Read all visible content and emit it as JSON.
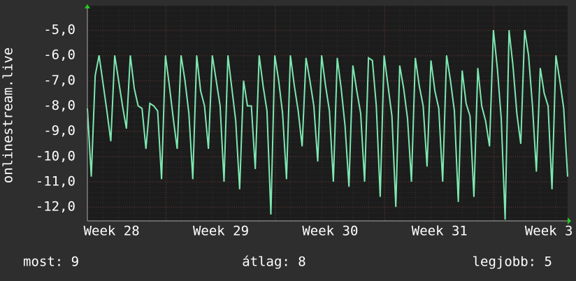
{
  "chart_data": {
    "type": "line",
    "ylabel": "onlinestream.live",
    "x": [
      0,
      0.25,
      0.5,
      0.75,
      1,
      1.25,
      1.5,
      1.75,
      2,
      2.25,
      2.5,
      2.75,
      3,
      3.25,
      3.5,
      3.75,
      4,
      4.25,
      4.5,
      4.75,
      5,
      5.25,
      5.5,
      5.75,
      6,
      6.25,
      6.5,
      6.75,
      7,
      7.25,
      7.5,
      7.75,
      8,
      8.25,
      8.5,
      8.75,
      9,
      9.25,
      9.5,
      9.75,
      10,
      10.25,
      10.5,
      10.75,
      11,
      11.25,
      11.5,
      11.75,
      12,
      12.25,
      12.5,
      12.75,
      13,
      13.25,
      13.5,
      13.75,
      14,
      14.25,
      14.5,
      14.75,
      15,
      15.25,
      15.5,
      15.75,
      16,
      16.25,
      16.5,
      16.75,
      17,
      17.25,
      17.5,
      17.75,
      18,
      18.25,
      18.5,
      18.75,
      19,
      19.25,
      19.5,
      19.75,
      20,
      20.25,
      20.5,
      20.75,
      21,
      21.25,
      21.5,
      21.75,
      22,
      22.25,
      22.5,
      22.75,
      23,
      23.25,
      23.5,
      23.75,
      24,
      24.25,
      24.5,
      24.75,
      25,
      25.25,
      25.5,
      25.75,
      26,
      26.25,
      26.5,
      26.75,
      27,
      27.25,
      27.5,
      27.75,
      28,
      28.25,
      28.5,
      28.75,
      29,
      29.25,
      29.5,
      29.75,
      30,
      30.25,
      30.5,
      30.75
    ],
    "series": [
      {
        "name": "onlinestream.live",
        "color": "#7de8b0",
        "values": [
          -8.1,
          -10.8,
          -6.8,
          -6.0,
          -7.1,
          -8.2,
          -9.4,
          -6.0,
          -7.0,
          -8.0,
          -8.9,
          -6.0,
          -7.3,
          -8.0,
          -8.1,
          -9.7,
          -7.9,
          -8.0,
          -8.2,
          -10.9,
          -6.0,
          -7.2,
          -8.5,
          -9.7,
          -6.0,
          -7.0,
          -8.3,
          -10.9,
          -6.0,
          -7.4,
          -8.0,
          -9.7,
          -6.0,
          -7.0,
          -8.0,
          -11.0,
          -6.0,
          -7.3,
          -8.6,
          -11.3,
          -7.0,
          -8.0,
          -8.0,
          -10.5,
          -6.0,
          -7.2,
          -8.2,
          -12.3,
          -6.0,
          -7.0,
          -8.3,
          -10.9,
          -6.0,
          -7.2,
          -8.2,
          -9.6,
          -6.1,
          -7.0,
          -8.0,
          -10.2,
          -6.0,
          -7.2,
          -8.2,
          -11.0,
          -6.1,
          -7.3,
          -8.8,
          -11.2,
          -6.4,
          -7.4,
          -8.3,
          -11.0,
          -6.1,
          -6.2,
          -8.0,
          -11.6,
          -6.0,
          -7.2,
          -8.4,
          -12.0,
          -6.4,
          -7.3,
          -8.5,
          -11.0,
          -6.1,
          -7.2,
          -8.0,
          -10.4,
          -6.2,
          -7.4,
          -8.1,
          -11.0,
          -6.0,
          -7.0,
          -8.2,
          -11.8,
          -6.6,
          -7.9,
          -8.4,
          -11.6,
          -6.5,
          -8.0,
          -8.6,
          -9.6,
          -5.0,
          -6.5,
          -8.5,
          -12.5,
          -5.0,
          -6.4,
          -8.3,
          -9.5,
          -5.0,
          -6.0,
          -8.0,
          -10.6,
          -6.5,
          -7.5,
          -8.0,
          -11.3,
          -6.0,
          -7.0,
          -8.1,
          -10.8
        ]
      }
    ],
    "xlim": [
      0,
      30.75
    ],
    "xticks": [
      {
        "value": 1.55,
        "label": "Week 28"
      },
      {
        "value": 8.55,
        "label": "Week 29"
      },
      {
        "value": 15.55,
        "label": "Week 30"
      },
      {
        "value": 22.55,
        "label": "Week 31"
      },
      {
        "value": 29.55,
        "label": "Week 3"
      }
    ],
    "x_major_grid": [
      5.05,
      12.05,
      19.05,
      26.05
    ],
    "ylim": [
      -12.55,
      -4.03
    ],
    "yticks": [
      {
        "value": -12,
        "label": "-12,0"
      },
      {
        "value": -11,
        "label": "-11,0"
      },
      {
        "value": -10,
        "label": "-10,0"
      },
      {
        "value": -9,
        "label": "-9,0"
      },
      {
        "value": -8,
        "label": "-8,0"
      },
      {
        "value": -7,
        "label": "-7,0"
      },
      {
        "value": -6,
        "label": "-6,0"
      },
      {
        "value": -5,
        "label": "-5,0"
      }
    ],
    "grid": true,
    "stats": [
      "most: 9",
      "átlag: 8",
      "legjobb: 5"
    ]
  }
}
